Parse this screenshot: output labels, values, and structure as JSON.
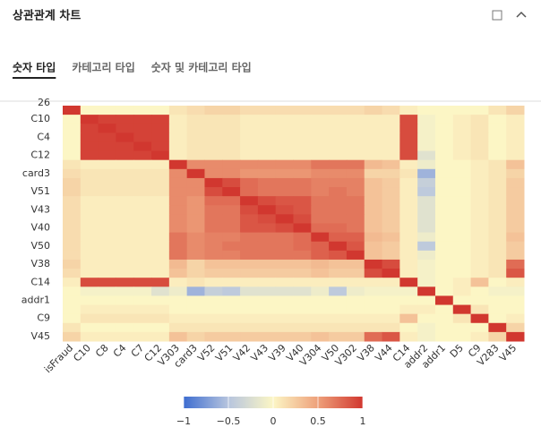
{
  "header": {
    "title": "상관관계 차트"
  },
  "tabs": [
    "숫자 타입",
    "카테고리 타입",
    "숫자 및 카테고리 타입"
  ],
  "active_tab": 0,
  "chart_data": {
    "type": "heatmap",
    "y_top_label": "26",
    "x_categories": [
      "isFraud",
      "C10",
      "C8",
      "C4",
      "C7",
      "C12",
      "V303",
      "card3",
      "V52",
      "V51",
      "V42",
      "V43",
      "V39",
      "V40",
      "V304",
      "V50",
      "V302",
      "V38",
      "V44",
      "C14",
      "addr2",
      "addr1",
      "D5",
      "C9",
      "V283",
      "V45"
    ],
    "y_categories": [
      null,
      "C10",
      null,
      "C4",
      null,
      "C12",
      null,
      "card3",
      null,
      "V51",
      null,
      "V43",
      null,
      "V40",
      null,
      "V50",
      null,
      "V38",
      null,
      "C14",
      null,
      "addr1",
      null,
      "C9",
      null,
      "V45"
    ],
    "values": [
      [
        1,
        0,
        0,
        0,
        0,
        0,
        0.1,
        0.15,
        0.2,
        0.2,
        0.15,
        0.15,
        0.15,
        0.15,
        0.15,
        0.15,
        0.15,
        0.2,
        0.15,
        0.05,
        0,
        0,
        0,
        0,
        0.1,
        0.2
      ],
      [
        0,
        1,
        0.95,
        0.95,
        0.95,
        0.95,
        0.05,
        0.1,
        0.1,
        0.1,
        0.05,
        0.05,
        0.05,
        0.05,
        0.05,
        0.05,
        0.05,
        0.05,
        0.05,
        0.9,
        -0.05,
        0,
        0.05,
        0.1,
        0,
        0.05
      ],
      [
        0,
        0.95,
        1,
        0.95,
        0.95,
        0.95,
        0.05,
        0.1,
        0.1,
        0.1,
        0.05,
        0.05,
        0.05,
        0.05,
        0.05,
        0.05,
        0.05,
        0.05,
        0.05,
        0.9,
        -0.05,
        0,
        0.05,
        0.1,
        0,
        0.05
      ],
      [
        0,
        0.95,
        0.95,
        1,
        0.95,
        0.95,
        0.05,
        0.1,
        0.1,
        0.1,
        0.05,
        0.05,
        0.05,
        0.05,
        0.05,
        0.05,
        0.05,
        0.05,
        0.05,
        0.9,
        -0.05,
        0,
        0.05,
        0.1,
        0,
        0.05
      ],
      [
        0,
        0.95,
        0.95,
        0.95,
        1,
        0.95,
        0.05,
        0.1,
        0.1,
        0.1,
        0.05,
        0.05,
        0.05,
        0.05,
        0.05,
        0.05,
        0.05,
        0.05,
        0.05,
        0.9,
        -0.05,
        0,
        0.05,
        0.1,
        0,
        0.05
      ],
      [
        0,
        0.95,
        0.95,
        0.95,
        0.95,
        1,
        0.05,
        0.1,
        0.1,
        0.1,
        0.05,
        0.05,
        0.05,
        0.05,
        0.05,
        0.05,
        0.05,
        0.05,
        0.05,
        0.9,
        -0.2,
        0,
        0.05,
        0.1,
        0,
        0.05
      ],
      [
        0.1,
        0.05,
        0.05,
        0.05,
        0.05,
        0.05,
        1,
        0.6,
        0.6,
        0.6,
        0.6,
        0.6,
        0.6,
        0.6,
        0.7,
        0.7,
        0.7,
        0.35,
        0.3,
        0.05,
        -0.1,
        0,
        0,
        0.05,
        0.1,
        0.3
      ],
      [
        0.15,
        0.1,
        0.1,
        0.1,
        0.1,
        0.1,
        0.6,
        1,
        0.6,
        0.6,
        0.55,
        0.55,
        0.55,
        0.55,
        0.6,
        0.6,
        0.6,
        0.2,
        0.2,
        0.1,
        -0.6,
        0,
        0,
        0.05,
        0.1,
        0.2
      ],
      [
        0.2,
        0.1,
        0.1,
        0.1,
        0.1,
        0.1,
        0.6,
        0.6,
        1,
        0.9,
        0.75,
        0.7,
        0.7,
        0.7,
        0.65,
        0.65,
        0.65,
        0.3,
        0.25,
        0.05,
        -0.4,
        0,
        0,
        0.05,
        0.1,
        0.25
      ],
      [
        0.2,
        0.1,
        0.1,
        0.1,
        0.1,
        0.1,
        0.6,
        0.6,
        0.9,
        1,
        0.75,
        0.7,
        0.7,
        0.7,
        0.65,
        0.7,
        0.65,
        0.3,
        0.25,
        0.05,
        -0.45,
        0,
        0,
        0.05,
        0.1,
        0.25
      ],
      [
        0.15,
        0.05,
        0.05,
        0.05,
        0.05,
        0.05,
        0.6,
        0.55,
        0.75,
        0.75,
        1,
        0.9,
        0.85,
        0.85,
        0.7,
        0.7,
        0.7,
        0.3,
        0.25,
        0.05,
        -0.2,
        0,
        0,
        0.05,
        0.1,
        0.25
      ],
      [
        0.15,
        0.05,
        0.05,
        0.05,
        0.05,
        0.05,
        0.6,
        0.55,
        0.7,
        0.7,
        0.9,
        1,
        0.9,
        0.85,
        0.7,
        0.7,
        0.7,
        0.3,
        0.25,
        0.05,
        -0.2,
        0,
        0,
        0.05,
        0.1,
        0.25
      ],
      [
        0.15,
        0.05,
        0.05,
        0.05,
        0.05,
        0.05,
        0.6,
        0.55,
        0.7,
        0.7,
        0.85,
        0.9,
        1,
        0.9,
        0.7,
        0.7,
        0.7,
        0.3,
        0.25,
        0.05,
        -0.2,
        0,
        0,
        0.05,
        0.1,
        0.25
      ],
      [
        0.15,
        0.05,
        0.05,
        0.05,
        0.05,
        0.05,
        0.6,
        0.55,
        0.7,
        0.7,
        0.85,
        0.85,
        0.9,
        1,
        0.75,
        0.75,
        0.7,
        0.3,
        0.25,
        0.05,
        -0.2,
        0,
        0,
        0.05,
        0.1,
        0.25
      ],
      [
        0.15,
        0.05,
        0.05,
        0.05,
        0.05,
        0.05,
        0.7,
        0.6,
        0.65,
        0.65,
        0.7,
        0.7,
        0.7,
        0.75,
        1,
        0.8,
        0.8,
        0.35,
        0.3,
        0.05,
        -0.1,
        0,
        0,
        0.05,
        0.1,
        0.3
      ],
      [
        0.15,
        0.05,
        0.05,
        0.05,
        0.05,
        0.05,
        0.7,
        0.6,
        0.65,
        0.7,
        0.7,
        0.7,
        0.7,
        0.75,
        0.8,
        1,
        0.85,
        0.3,
        0.25,
        0.05,
        -0.45,
        0,
        0,
        0.05,
        0.1,
        0.25
      ],
      [
        0.15,
        0.05,
        0.05,
        0.05,
        0.05,
        0.05,
        0.7,
        0.6,
        0.65,
        0.65,
        0.7,
        0.7,
        0.7,
        0.7,
        0.8,
        0.85,
        1,
        0.3,
        0.25,
        0.05,
        -0.1,
        0,
        0,
        0.05,
        0.1,
        0.25
      ],
      [
        0.2,
        0.05,
        0.05,
        0.05,
        0.05,
        0.05,
        0.35,
        0.2,
        0.3,
        0.3,
        0.3,
        0.3,
        0.3,
        0.3,
        0.35,
        0.3,
        0.3,
        1,
        0.9,
        0.05,
        -0.05,
        0,
        0,
        0.05,
        0.1,
        0.75
      ],
      [
        0.15,
        0.05,
        0.05,
        0.05,
        0.05,
        0.05,
        0.3,
        0.2,
        0.25,
        0.25,
        0.25,
        0.25,
        0.25,
        0.25,
        0.3,
        0.25,
        0.25,
        0.9,
        1,
        0.05,
        -0.05,
        0,
        0,
        0.05,
        0.1,
        0.85
      ],
      [
        0.05,
        0.9,
        0.9,
        0.9,
        0.9,
        0.9,
        0.05,
        0.1,
        0.05,
        0.05,
        0.05,
        0.05,
        0.05,
        0.05,
        0.05,
        0.05,
        0.05,
        0.05,
        0.05,
        1,
        -0.05,
        0,
        0.05,
        0.3,
        0,
        0.05
      ],
      [
        0,
        -0.05,
        -0.05,
        -0.05,
        -0.05,
        -0.2,
        -0.1,
        -0.6,
        -0.4,
        -0.45,
        -0.2,
        -0.2,
        -0.2,
        -0.2,
        -0.1,
        -0.45,
        -0.1,
        -0.05,
        -0.05,
        -0.05,
        1,
        0,
        0.05,
        0,
        -0.05,
        -0.05
      ],
      [
        0,
        0,
        0,
        0,
        0,
        0,
        0,
        0,
        0,
        0,
        0,
        0,
        0,
        0,
        0,
        0,
        0,
        0,
        0,
        0,
        0,
        1,
        0,
        0,
        0,
        0
      ],
      [
        0,
        0.05,
        0.05,
        0.05,
        0.05,
        0.05,
        0,
        0,
        0,
        0,
        0,
        0,
        0,
        0,
        0,
        0,
        0,
        0,
        0,
        0.05,
        0.05,
        0,
        1,
        0.1,
        0,
        0
      ],
      [
        0,
        0.1,
        0.1,
        0.1,
        0.1,
        0.1,
        0.05,
        0.05,
        0.05,
        0.05,
        0.05,
        0.05,
        0.05,
        0.05,
        0.05,
        0.05,
        0.05,
        0.05,
        0.05,
        0.3,
        0,
        0,
        0.1,
        1,
        0,
        0.05
      ],
      [
        0.1,
        0,
        0,
        0,
        0,
        0,
        0.1,
        0.1,
        0.1,
        0.1,
        0.1,
        0.1,
        0.1,
        0.1,
        0.1,
        0.1,
        0.1,
        0.1,
        0.1,
        0,
        -0.05,
        0,
        0,
        0,
        1,
        0.2
      ],
      [
        0.2,
        0.05,
        0.05,
        0.05,
        0.05,
        0.05,
        0.3,
        0.2,
        0.25,
        0.25,
        0.25,
        0.25,
        0.25,
        0.25,
        0.3,
        0.25,
        0.25,
        0.75,
        0.85,
        0.05,
        -0.05,
        0,
        0,
        0.05,
        0.2,
        1
      ]
    ],
    "clim": [
      -1,
      1
    ],
    "cticks": [
      {
        "value": -1,
        "label": "−1"
      },
      {
        "value": -0.5,
        "label": "−0.5"
      },
      0,
      0.5,
      1
    ],
    "colors": [
      "#3e6dd0",
      "#b7c5de",
      "#fcf6c5",
      "#eea07a",
      "#d1372f"
    ]
  }
}
